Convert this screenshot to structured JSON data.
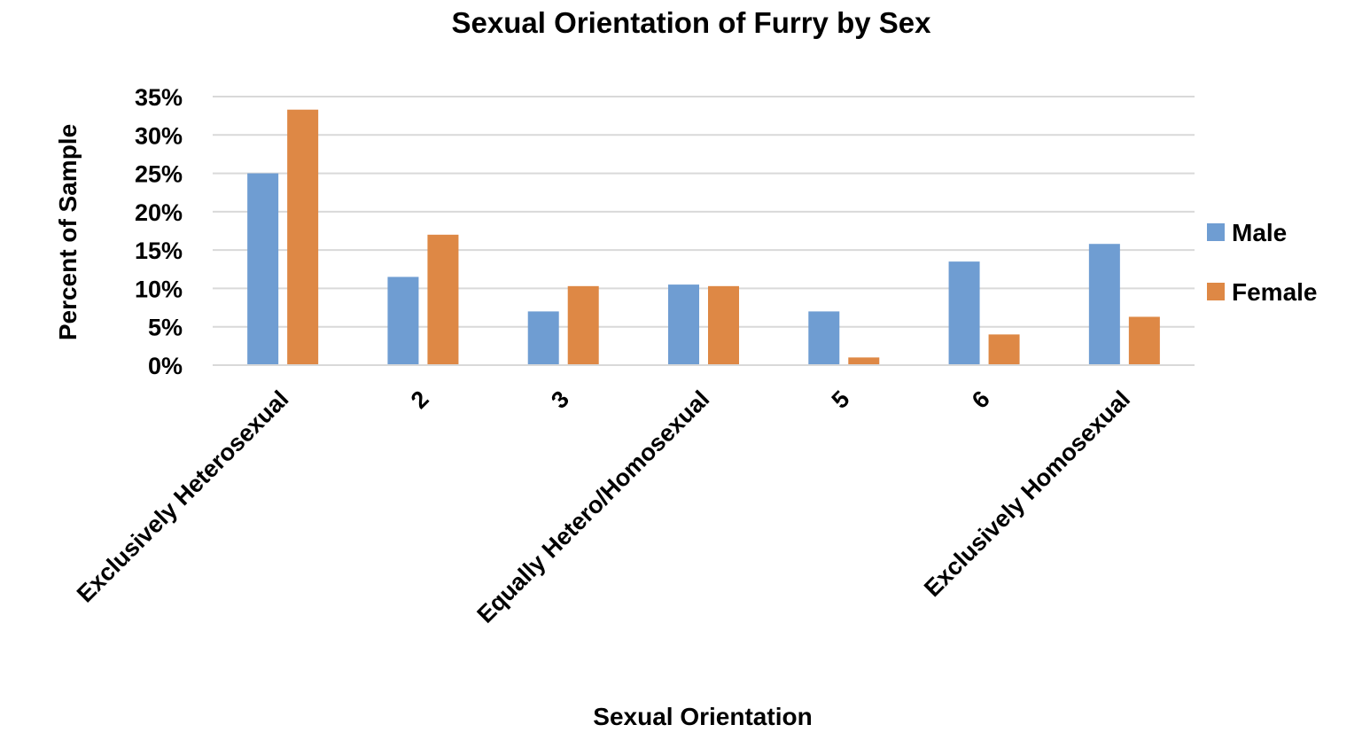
{
  "chart_data": {
    "type": "bar",
    "title": "Sexual Orientation of Furry by Sex",
    "xlabel": "Sexual Orientation",
    "ylabel": "Percent of Sample",
    "categories": [
      "Exclusively Heterosexual",
      "2",
      "3",
      "Equally Hetero/Homosexual",
      "5",
      "6",
      "Exclusively Homosexual"
    ],
    "series": [
      {
        "name": "Male",
        "color": "#6f9dd2",
        "values": [
          25.0,
          11.5,
          7.0,
          10.5,
          7.0,
          13.5,
          15.8
        ]
      },
      {
        "name": "Female",
        "color": "#de8845",
        "values": [
          33.3,
          17.0,
          10.3,
          10.3,
          1.0,
          4.0,
          6.3
        ]
      }
    ],
    "ylim": [
      0,
      35
    ],
    "y_ticks": [
      0,
      5,
      10,
      15,
      20,
      25,
      30,
      35
    ],
    "y_tick_labels": [
      "0%",
      "5%",
      "10%",
      "15%",
      "20%",
      "25%",
      "30%",
      "35%"
    ],
    "grid": true,
    "gridline_color": "#d9d9d9",
    "legend_position": "right"
  }
}
